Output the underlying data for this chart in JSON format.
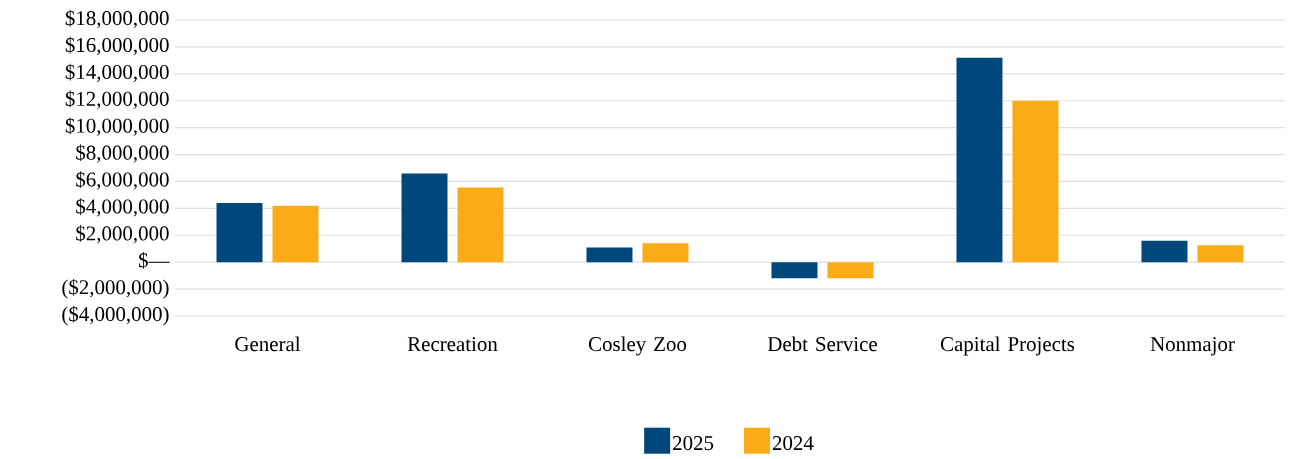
{
  "chart_data": {
    "type": "bar",
    "categories": [
      "General",
      "Recreation",
      "Cosley Zoo",
      "Debt Service",
      "Capital Projects",
      "Nonmajor"
    ],
    "series": [
      {
        "name": "2025",
        "color": "#00487c",
        "values": [
          4400000,
          6600000,
          1100000,
          -1200000,
          15200000,
          1600000
        ]
      },
      {
        "name": "2024",
        "color": "#f9ab18",
        "values": [
          4200000,
          5550000,
          1400000,
          -1200000,
          12000000,
          1250000
        ]
      }
    ],
    "ylim": [
      -4000000,
      18000000
    ],
    "yticks": [
      {
        "value": -4000000,
        "label": "($4,000,000)"
      },
      {
        "value": -2000000,
        "label": "($2,000,000)"
      },
      {
        "value": 0,
        "label": "$—"
      },
      {
        "value": 2000000,
        "label": "$2,000,000"
      },
      {
        "value": 4000000,
        "label": "$4,000,000"
      },
      {
        "value": 6000000,
        "label": "$6,000,000"
      },
      {
        "value": 8000000,
        "label": "$8,000,000"
      },
      {
        "value": 10000000,
        "label": "$10,000,000"
      },
      {
        "value": 12000000,
        "label": "$12,000,000"
      },
      {
        "value": 14000000,
        "label": "$14,000,000"
      },
      {
        "value": 16000000,
        "label": "$16,000,000"
      },
      {
        "value": 18000000,
        "label": "$18,000,000"
      }
    ],
    "grid": "y",
    "legend": "bottom"
  }
}
